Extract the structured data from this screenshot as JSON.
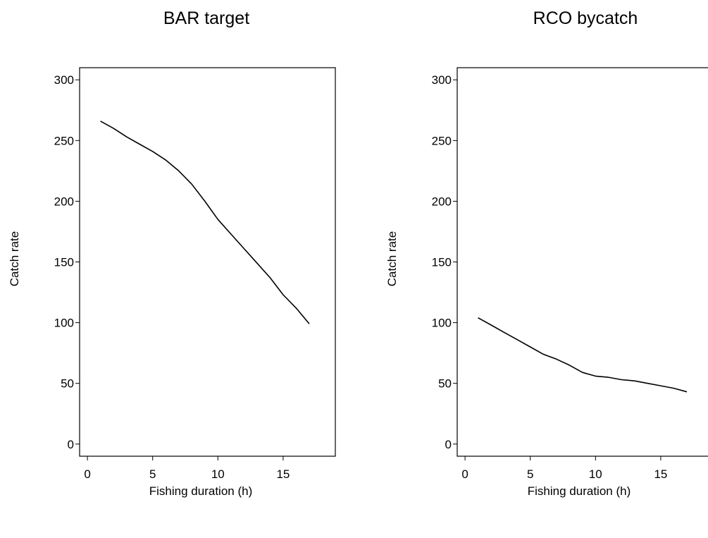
{
  "chart_data": [
    {
      "type": "line",
      "title": "BAR target",
      "xlabel": "Fishing duration (h)",
      "ylabel": "Catch rate",
      "xlim": [
        -0.6,
        19
      ],
      "ylim": [
        -10,
        310
      ],
      "xticks": [
        0,
        5,
        10,
        15
      ],
      "yticks": [
        0,
        50,
        100,
        150,
        200,
        250,
        300
      ],
      "grid": false,
      "series": [
        {
          "x": [
            1,
            2,
            3,
            4,
            5,
            6,
            7,
            8,
            9,
            10,
            11,
            12,
            13,
            14,
            15,
            16,
            17
          ],
          "y": [
            266,
            260,
            253,
            247,
            241,
            234,
            225,
            214,
            200,
            185,
            173,
            161,
            149,
            137,
            123,
            112,
            99
          ]
        }
      ]
    },
    {
      "type": "line",
      "title": "RCO bycatch",
      "xlabel": "Fishing duration (h)",
      "ylabel": "Catch rate",
      "xlim": [
        -0.6,
        19
      ],
      "ylim": [
        -10,
        310
      ],
      "xticks": [
        0,
        5,
        10,
        15
      ],
      "yticks": [
        0,
        50,
        100,
        150,
        200,
        250,
        300
      ],
      "grid": false,
      "series": [
        {
          "x": [
            1,
            2,
            3,
            4,
            5,
            6,
            7,
            8,
            9,
            10,
            11,
            12,
            13,
            14,
            15,
            16,
            17
          ],
          "y": [
            104,
            98,
            92,
            86,
            80,
            74,
            70,
            65,
            59,
            56,
            55,
            53,
            52,
            50,
            48,
            46,
            43
          ]
        }
      ]
    }
  ]
}
